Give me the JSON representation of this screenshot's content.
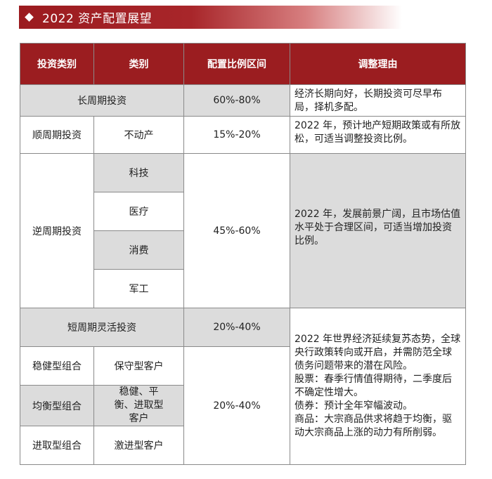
{
  "banner": {
    "title": "2022 资产配置展望"
  },
  "table": {
    "headers": [
      "投资类别",
      "类别",
      "配置比例区间",
      "调整理由"
    ],
    "rows": {
      "long_term": {
        "category": "长周期投资",
        "ratio": "60%-80%",
        "reason": "经济长期向好，长期投资可尽早布局，择机多配。"
      },
      "pro_cyclical": {
        "category": "顺周期投资",
        "sub": "不动产",
        "ratio": "15%-20%",
        "reason": "2022 年，预计地产短期政策或有所放松，可适当调整投资比例。"
      },
      "counter_cyclical": {
        "category": "逆周期投资",
        "subs": [
          "科技",
          "医疗",
          "消费",
          "军工"
        ],
        "ratio": "45%-60%",
        "reason": "2022 年，发展前景广阔，且市场估值水平处于合理区间，可适当增加投资比例。"
      },
      "short_term": {
        "category": "短周期灵活投资",
        "ratio": "20%-40%"
      },
      "portfolios": {
        "items": [
          {
            "type": "稳健型组合",
            "client": "保守型客户"
          },
          {
            "type": "均衡型组合",
            "client": "稳健、平衡、进取型客户"
          },
          {
            "type": "进取型组合",
            "client": "激进型客户"
          }
        ],
        "ratio": "20%-40%"
      },
      "short_term_reason": [
        "2022 年世界经济延续复苏态势，全球央行政策转向或开启，并需防范全球债务问题带来的潜在风险。",
        "股票：春季行情值得期待，二季度后不确定性增大。",
        "债券：预计全年窄幅波动。",
        "商品：大宗商品供求将趋于均衡，驱动大宗商品上涨的动力有所削弱。"
      ]
    }
  },
  "colors": {
    "header_red": "#9b1d20",
    "cell_grey": "#dcdcdc"
  }
}
